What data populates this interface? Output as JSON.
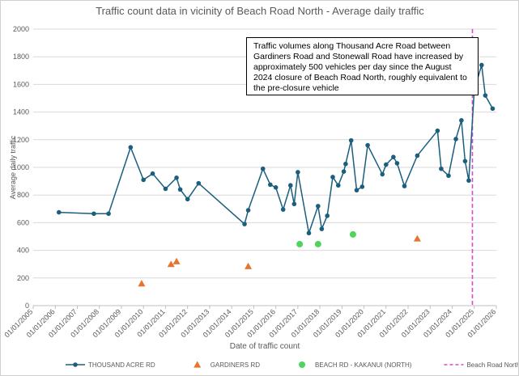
{
  "chart_data": {
    "type": "line",
    "title": "Traffic count data in vicinity of Beach Road North - Average daily traffic",
    "xlabel": "Date of traffic count",
    "ylabel": "Average daily traffic",
    "annotation": "Traffic volumes along Thousand Acre Road between Gardiners Road and Stonewall Road have increased by approximately 500 vehicles per day since the August 2024 closure of Beach Road North, roughly equivalent to the pre-closure vehicle",
    "xlim": [
      "2005-01-01",
      "2026-01-01"
    ],
    "xticks": [
      {
        "value": "2005-01-01",
        "label": "01/01/2005"
      },
      {
        "value": "2006-01-01",
        "label": "01/01/2006"
      },
      {
        "value": "2007-01-01",
        "label": "01/01/2007"
      },
      {
        "value": "2008-01-01",
        "label": "01/01/2008"
      },
      {
        "value": "2009-01-01",
        "label": "01/01/2009"
      },
      {
        "value": "2010-01-01",
        "label": "01/01/2010"
      },
      {
        "value": "2011-01-01",
        "label": "01/01/2011"
      },
      {
        "value": "2012-01-01",
        "label": "01/01/2012"
      },
      {
        "value": "2013-01-01",
        "label": "01/01/2013"
      },
      {
        "value": "2014-01-01",
        "label": "01/01/2014"
      },
      {
        "value": "2015-01-01",
        "label": "01/01/2015"
      },
      {
        "value": "2016-01-01",
        "label": "01/01/2016"
      },
      {
        "value": "2017-01-01",
        "label": "01/01/2017"
      },
      {
        "value": "2018-01-01",
        "label": "01/01/2018"
      },
      {
        "value": "2019-01-01",
        "label": "01/01/2019"
      },
      {
        "value": "2020-01-01",
        "label": "01/01/2020"
      },
      {
        "value": "2021-01-01",
        "label": "01/01/2021"
      },
      {
        "value": "2022-01-01",
        "label": "01/01/2022"
      },
      {
        "value": "2023-01-01",
        "label": "01/01/2023"
      },
      {
        "value": "2024-01-01",
        "label": "01/01/2024"
      },
      {
        "value": "2025-01-01",
        "label": "01/01/2025"
      },
      {
        "value": "2026-01-01",
        "label": "01/01/2026"
      }
    ],
    "ylim": [
      0,
      2000
    ],
    "yticks": [
      0,
      200,
      400,
      600,
      800,
      1000,
      1200,
      1400,
      1600,
      1800,
      2000
    ],
    "grid": true,
    "series": [
      {
        "name": "THOUSAND ACRE RD",
        "color": "#1b5e7e",
        "marker": "circle",
        "line": true,
        "x": [
          "2006-03",
          "2007-10",
          "2008-06",
          "2009-06",
          "2010-01",
          "2010-06",
          "2011-01",
          "2011-07",
          "2011-09",
          "2012-01",
          "2012-07",
          "2014-08",
          "2014-10",
          "2015-06",
          "2015-10",
          "2016-01",
          "2016-05",
          "2016-09",
          "2016-11",
          "2017-01",
          "2017-07",
          "2017-12",
          "2018-02",
          "2018-05",
          "2018-08",
          "2018-11",
          "2019-02",
          "2019-03",
          "2019-06",
          "2019-09",
          "2019-12",
          "2020-03",
          "2020-11",
          "2021-01",
          "2021-05",
          "2021-07",
          "2021-11",
          "2022-06",
          "2023-05",
          "2023-07",
          "2023-11",
          "2024-03",
          "2024-06",
          "2024-08",
          "2024-10",
          "2025-01",
          "2025-05",
          "2025-07",
          "2025-11"
        ],
        "values": [
          675,
          665,
          665,
          1145,
          910,
          955,
          845,
          925,
          840,
          770,
          885,
          590,
          690,
          990,
          875,
          855,
          695,
          870,
          735,
          965,
          525,
          720,
          555,
          650,
          930,
          870,
          970,
          1025,
          1195,
          835,
          860,
          1160,
          950,
          1020,
          1075,
          1030,
          865,
          1085,
          1265,
          990,
          940,
          1205,
          1340,
          1045,
          905,
          1560,
          1740,
          1520,
          1425
        ]
      },
      {
        "name": "GARDINERS RD",
        "color": "#e8742c",
        "marker": "triangle",
        "line": false,
        "x": [
          "2009-12",
          "2011-04",
          "2011-07",
          "2014-10",
          "2022-06"
        ],
        "values": [
          160,
          300,
          320,
          285,
          485
        ]
      },
      {
        "name": "BEACH RD - KAKANUI (NORTH)",
        "color": "#4fd45c",
        "marker": "circle",
        "line": false,
        "x": [
          "2017-02",
          "2017-12",
          "2019-07"
        ],
        "values": [
          445,
          445,
          515
        ]
      }
    ],
    "reference_lines": [
      {
        "name": "Beach Road North Closure",
        "color": "#d24bd2",
        "x": "2024-12"
      }
    ],
    "legend": "bottom"
  }
}
